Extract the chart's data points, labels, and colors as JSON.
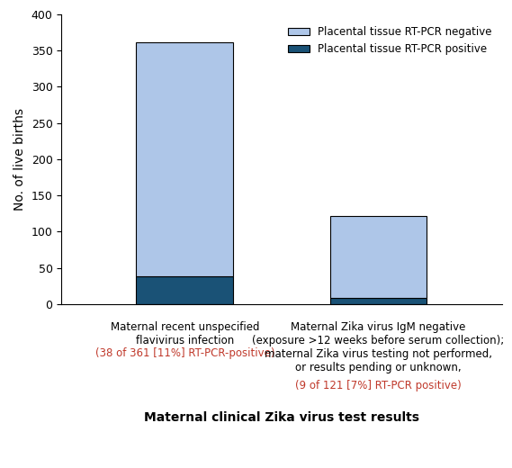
{
  "pcr_positive": [
    38,
    9
  ],
  "pcr_negative": [
    323,
    112
  ],
  "total": [
    361,
    121
  ],
  "color_positive": "#1a5276",
  "color_negative": "#aec6e8",
  "ylabel": "No. of live births",
  "xlabel": "Maternal clinical Zika virus test results",
  "ylim": [
    0,
    400
  ],
  "yticks": [
    0,
    50,
    100,
    150,
    200,
    250,
    300,
    350,
    400
  ],
  "legend_negative": "Placental tissue RT-PCR negative",
  "legend_positive": "Placental tissue RT-PCR positive",
  "bar_width": 0.22,
  "label_fontsize": 8.5,
  "xlabel_fontsize": 10,
  "ylabel_fontsize": 10,
  "x_positions": [
    0.28,
    0.72
  ]
}
